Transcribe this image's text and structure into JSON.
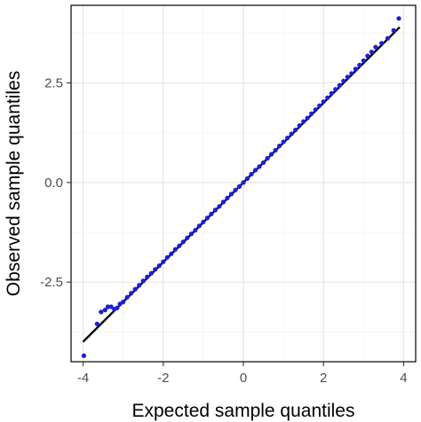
{
  "chart_data": {
    "type": "scatter",
    "title": "",
    "xlabel": "Expected sample quantiles",
    "ylabel": "Observed sample quantiles",
    "xlim": [
      -4.3,
      4.3
    ],
    "ylim": [
      -4.5,
      4.45
    ],
    "xticks": [
      -4,
      -2,
      0,
      2,
      4
    ],
    "xtick_labels": [
      "-4",
      "-2",
      "0",
      "2",
      "4"
    ],
    "yticks": [
      -2.5,
      0.0,
      2.5
    ],
    "ytick_labels": [
      "-2.5",
      "0.0",
      "2.5"
    ],
    "grid": true,
    "legend": "none",
    "reference_line": {
      "slope": 1.0,
      "intercept": 0.0,
      "from": -4.0,
      "to": 3.9
    },
    "series": [
      {
        "color": "#1f1fd6",
        "points": [
          [
            -3.98,
            -4.35
          ],
          [
            -3.65,
            -3.55
          ],
          [
            -3.55,
            -3.25
          ],
          [
            -3.45,
            -3.2
          ],
          [
            -3.38,
            -3.12
          ],
          [
            -3.3,
            -3.12
          ],
          [
            -3.22,
            -3.18
          ],
          [
            -3.15,
            -3.15
          ],
          [
            -3.08,
            -3.05
          ],
          [
            -3.0,
            -3.0
          ],
          [
            -2.9,
            -2.88
          ],
          [
            -2.8,
            -2.78
          ],
          [
            -2.7,
            -2.68
          ],
          [
            -2.6,
            -2.58
          ],
          [
            -2.5,
            -2.47
          ],
          [
            -2.4,
            -2.37
          ],
          [
            -2.3,
            -2.28
          ],
          [
            -2.2,
            -2.18
          ],
          [
            -2.1,
            -2.09
          ],
          [
            -2.0,
            -1.99
          ],
          [
            -1.9,
            -1.88
          ],
          [
            -1.8,
            -1.79
          ],
          [
            -1.7,
            -1.68
          ],
          [
            -1.6,
            -1.59
          ],
          [
            -1.5,
            -1.49
          ],
          [
            -1.4,
            -1.39
          ],
          [
            -1.3,
            -1.29
          ],
          [
            -1.2,
            -1.2
          ],
          [
            -1.1,
            -1.09
          ],
          [
            -1.0,
            -0.99
          ],
          [
            -0.9,
            -0.89
          ],
          [
            -0.8,
            -0.79
          ],
          [
            -0.7,
            -0.69
          ],
          [
            -0.6,
            -0.6
          ],
          [
            -0.5,
            -0.49
          ],
          [
            -0.4,
            -0.39
          ],
          [
            -0.3,
            -0.29
          ],
          [
            -0.2,
            -0.19
          ],
          [
            -0.1,
            -0.1
          ],
          [
            0.0,
            0.0
          ],
          [
            0.1,
            0.1
          ],
          [
            0.2,
            0.21
          ],
          [
            0.3,
            0.31
          ],
          [
            0.4,
            0.4
          ],
          [
            0.5,
            0.5
          ],
          [
            0.6,
            0.61
          ],
          [
            0.7,
            0.71
          ],
          [
            0.8,
            0.81
          ],
          [
            0.9,
            0.92
          ],
          [
            1.0,
            1.02
          ],
          [
            1.1,
            1.12
          ],
          [
            1.2,
            1.22
          ],
          [
            1.3,
            1.32
          ],
          [
            1.4,
            1.43
          ],
          [
            1.5,
            1.53
          ],
          [
            1.6,
            1.62
          ],
          [
            1.7,
            1.73
          ],
          [
            1.8,
            1.83
          ],
          [
            1.9,
            1.93
          ],
          [
            2.0,
            2.03
          ],
          [
            2.1,
            2.13
          ],
          [
            2.2,
            2.24
          ],
          [
            2.3,
            2.34
          ],
          [
            2.4,
            2.44
          ],
          [
            2.5,
            2.55
          ],
          [
            2.6,
            2.65
          ],
          [
            2.7,
            2.74
          ],
          [
            2.8,
            2.85
          ],
          [
            2.9,
            2.95
          ],
          [
            3.0,
            3.06
          ],
          [
            3.1,
            3.18
          ],
          [
            3.2,
            3.28
          ],
          [
            3.3,
            3.4
          ],
          [
            3.45,
            3.5
          ],
          [
            3.6,
            3.62
          ],
          [
            3.75,
            3.82
          ],
          [
            3.88,
            4.12
          ]
        ]
      }
    ]
  }
}
